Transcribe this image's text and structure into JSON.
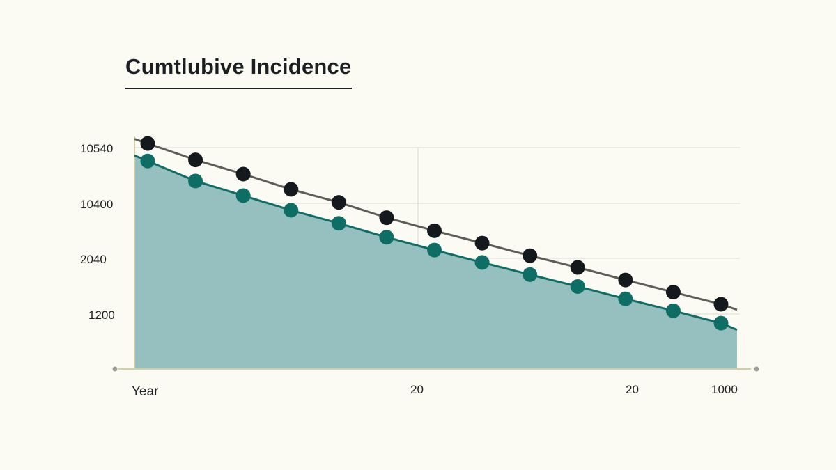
{
  "chart_data": {
    "type": "line",
    "title": "Cumtlubive Incidence",
    "xlabel": "Year",
    "ylabel": "",
    "y_ticks": [
      "10540",
      "10400",
      "2040",
      "1200"
    ],
    "x_ticks": [
      "20",
      "20",
      "1000"
    ],
    "grid": true,
    "series": [
      {
        "color": "#14191e",
        "values": [
          100.3,
          93.0,
          86.7,
          79.9,
          74.1,
          67.3,
          61.5,
          56.0,
          50.4,
          45.2,
          39.6,
          34.2,
          28.8
        ]
      },
      {
        "color": "#0e6e66",
        "fill": "#96bfbf",
        "values": [
          92.5,
          83.6,
          77.1,
          70.6,
          64.8,
          58.6,
          52.9,
          47.4,
          42.0,
          36.7,
          31.2,
          25.9,
          20.4
        ]
      }
    ]
  }
}
